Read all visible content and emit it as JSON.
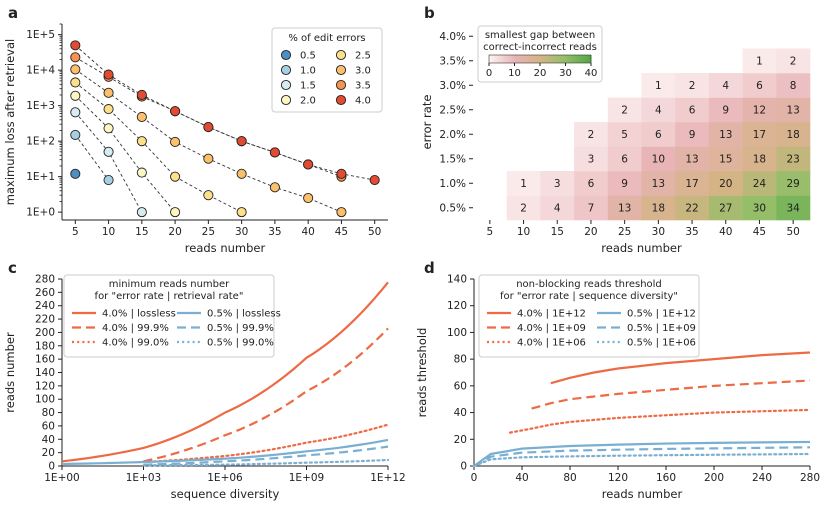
{
  "chart_data": [
    {
      "panel": "a",
      "type": "scatter",
      "xlabel": "reads number",
      "ylabel": "maximum loss after retrieval",
      "yscale": "log",
      "xlim": [
        3,
        52
      ],
      "ylim": [
        0.6,
        200000
      ],
      "x_ticks": [
        5,
        10,
        15,
        20,
        25,
        30,
        35,
        40,
        45,
        50
      ],
      "y_ticks": [
        1,
        10,
        100,
        1000,
        10000,
        100000
      ],
      "y_tick_labels": [
        "1E+0",
        "1E+1",
        "1E+2",
        "1E+3",
        "1E+4",
        "1E+5"
      ],
      "legend_title": "% of edit errors",
      "series": [
        {
          "name": "0.5",
          "color": "#4d8fc0",
          "x": [
            5
          ],
          "y": [
            12
          ]
        },
        {
          "name": "1.0",
          "color": "#a6cfe4",
          "x": [
            5,
            10
          ],
          "y": [
            150,
            8
          ]
        },
        {
          "name": "1.5",
          "color": "#d6ecf2",
          "x": [
            5,
            10,
            15
          ],
          "y": [
            650,
            50,
            1
          ]
        },
        {
          "name": "2.0",
          "color": "#fdf6c0",
          "x": [
            5,
            10,
            15,
            20
          ],
          "y": [
            1900,
            230,
            13,
            1
          ]
        },
        {
          "name": "2.5",
          "color": "#fee08b",
          "x": [
            5,
            10,
            15,
            20,
            25,
            30
          ],
          "y": [
            4500,
            800,
            100,
            10,
            3,
            1
          ]
        },
        {
          "name": "3.0",
          "color": "#fdc06a",
          "x": [
            5,
            10,
            15,
            20,
            25,
            30,
            35,
            40,
            45
          ],
          "y": [
            10500,
            2300,
            480,
            95,
            32,
            12,
            5,
            2.5,
            1
          ]
        },
        {
          "name": "3.5",
          "color": "#f9924e",
          "x": [
            5,
            10,
            15,
            20,
            25,
            30,
            35,
            40,
            45
          ],
          "y": [
            23000,
            6500,
            1800,
            700,
            250,
            100,
            48,
            22,
            10
          ]
        },
        {
          "name": "4.0",
          "color": "#e24b32",
          "x": [
            5,
            10,
            15,
            20,
            25,
            30,
            35,
            40,
            45,
            50
          ],
          "y": [
            50000,
            7500,
            2000,
            700,
            250,
            100,
            48,
            22,
            12,
            8
          ]
        }
      ]
    },
    {
      "panel": "b",
      "type": "heatmap",
      "xlabel": "reads number",
      "ylabel": "error rate",
      "x": [
        5,
        10,
        15,
        20,
        25,
        30,
        35,
        40,
        45,
        50
      ],
      "y": [
        "0.5%",
        "1.0%",
        "1.5%",
        "2.0%",
        "2.5%",
        "3.0%",
        "3.5%",
        "4.0%"
      ],
      "colorbar_title": [
        "smallest gap between",
        "correct-incorrect reads"
      ],
      "colorbar_ticks": [
        0,
        10,
        20,
        30,
        40
      ],
      "cells": [
        [
          null,
          2,
          4,
          7,
          13,
          18,
          22,
          27,
          30,
          34
        ],
        [
          null,
          1,
          3,
          6,
          9,
          13,
          17,
          20,
          24,
          29
        ],
        [
          null,
          null,
          null,
          3,
          6,
          10,
          13,
          15,
          18,
          23
        ],
        [
          null,
          null,
          null,
          2,
          5,
          6,
          9,
          13,
          17,
          18
        ],
        [
          null,
          null,
          null,
          null,
          2,
          4,
          6,
          9,
          12,
          13
        ],
        [
          null,
          null,
          null,
          null,
          null,
          1,
          2,
          4,
          6,
          8
        ],
        [
          null,
          null,
          null,
          null,
          null,
          null,
          null,
          null,
          1,
          2
        ],
        [
          null,
          null,
          null,
          null,
          null,
          null,
          null,
          null,
          null,
          null
        ]
      ]
    },
    {
      "panel": "c",
      "type": "line",
      "xlabel": "sequence diversity",
      "ylabel": "reads number",
      "xscale": "log",
      "xlim": [
        1,
        1000000000000
      ],
      "ylim": [
        0,
        280
      ],
      "x_ticks": [
        1,
        1000,
        1000000,
        1000000000,
        1000000000000
      ],
      "x_tick_labels": [
        "1E+00",
        "1E+03",
        "1E+06",
        "1E+09",
        "1E+12"
      ],
      "y_ticks": [
        0,
        20,
        40,
        60,
        80,
        100,
        120,
        140,
        160,
        180,
        200,
        220,
        240,
        260,
        280
      ],
      "legend_title": [
        "minimum reads number",
        "for \"error rate | retrieval rate\""
      ],
      "series": [
        {
          "name": "4.0% | lossless",
          "color": "#ee6a45",
          "dash": "solid",
          "x_log10": [
            0,
            3,
            6,
            9,
            12
          ],
          "values": [
            7,
            27,
            80,
            162,
            275
          ]
        },
        {
          "name": "4.0% | 99.9%",
          "color": "#ee6a45",
          "dash": "dashed",
          "x_log10": [
            3,
            6,
            9,
            12
          ],
          "values": [
            7,
            46,
            112,
            206
          ]
        },
        {
          "name": "4.0% | 99.0%",
          "color": "#ee6a45",
          "dash": "dotted",
          "x_log10": [
            3,
            6,
            9,
            12
          ],
          "values": [
            6,
            15,
            35,
            62
          ]
        },
        {
          "name": "0.5% | lossless",
          "color": "#7aafd2",
          "dash": "solid",
          "x_log10": [
            0,
            3,
            6,
            9,
            12
          ],
          "values": [
            3,
            6,
            11,
            22,
            39
          ]
        },
        {
          "name": "0.5% | 99.9%",
          "color": "#7aafd2",
          "dash": "dashed",
          "x_log10": [
            3,
            6,
            9,
            12
          ],
          "values": [
            2,
            7,
            16,
            29
          ]
        },
        {
          "name": "0.5% | 99.0%",
          "color": "#7aafd2",
          "dash": "dotted",
          "x_log10": [
            3,
            6,
            9,
            12
          ],
          "values": [
            1,
            2,
            5,
            9
          ]
        }
      ]
    },
    {
      "panel": "d",
      "type": "line",
      "xlabel": "reads number",
      "ylabel": "reads threshold",
      "xlim": [
        0,
        280
      ],
      "ylim": [
        0,
        140
      ],
      "x_ticks": [
        0,
        40,
        80,
        120,
        160,
        200,
        240,
        280
      ],
      "y_ticks": [
        0,
        20,
        40,
        60,
        80,
        100,
        120,
        140
      ],
      "legend_title": [
        "non-blocking reads threshold",
        "for \"error rate | sequence diversity\""
      ],
      "series": [
        {
          "name": "4.0% | 1E+12",
          "color": "#ee6a45",
          "dash": "solid",
          "x": [
            64,
            80,
            100,
            120,
            160,
            200,
            240,
            280
          ],
          "values": [
            62,
            66,
            70,
            73,
            77,
            80,
            83,
            85
          ]
        },
        {
          "name": "4.0% | 1E+09",
          "color": "#ee6a45",
          "dash": "dashed",
          "x": [
            48,
            64,
            80,
            120,
            160,
            200,
            240,
            280
          ],
          "values": [
            43,
            47,
            50,
            54,
            57,
            60,
            62,
            64
          ]
        },
        {
          "name": "4.0% | 1E+06",
          "color": "#ee6a45",
          "dash": "dotted",
          "x": [
            30,
            48,
            64,
            80,
            120,
            160,
            200,
            240,
            280
          ],
          "values": [
            25,
            28,
            31,
            33,
            36,
            38,
            40,
            41,
            42
          ]
        },
        {
          "name": "0.5% | 1E+12",
          "color": "#7aafd2",
          "dash": "solid",
          "x": [
            0,
            14,
            40,
            80,
            120,
            160,
            200,
            240,
            280
          ],
          "values": [
            0,
            9,
            13,
            15,
            16,
            16.8,
            17.3,
            17.7,
            18
          ]
        },
        {
          "name": "0.5% | 1E+09",
          "color": "#7aafd2",
          "dash": "dashed",
          "x": [
            0,
            14,
            40,
            80,
            120,
            160,
            200,
            240,
            280
          ],
          "values": [
            0,
            7,
            10,
            11.5,
            12.2,
            12.8,
            13.2,
            13.6,
            14
          ]
        },
        {
          "name": "0.5% | 1E+06",
          "color": "#7aafd2",
          "dash": "dotted",
          "x": [
            0,
            14,
            40,
            80,
            120,
            160,
            200,
            240,
            280
          ],
          "values": [
            0,
            5,
            6.5,
            7.2,
            7.7,
            8.1,
            8.4,
            8.7,
            9
          ]
        }
      ]
    }
  ]
}
